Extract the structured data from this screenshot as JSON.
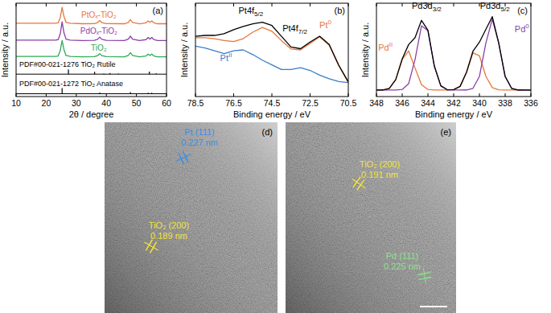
{
  "chart_data": [
    {
      "type": "line",
      "panel_label": "(a)",
      "x_label": "2θ / degree",
      "y_label": "Intensity / a.u.",
      "xlim": [
        10,
        60
      ],
      "xticks": [
        10,
        20,
        30,
        40,
        50,
        60
      ],
      "ylim": [
        0,
        10
      ],
      "tick_labels": "x",
      "x": [
        10,
        15,
        20,
        23,
        24,
        24.7,
        25.3,
        25.9,
        26.6,
        28,
        32,
        36,
        37.1,
        37.8,
        38.5,
        40,
        46,
        47.3,
        48,
        48.7,
        51,
        53.2,
        53.9,
        54.5,
        55.1,
        55.8,
        57,
        60
      ],
      "series": [
        {
          "name": "PtOₓ-TiO₂",
          "color": "#e8763a",
          "values": [
            7.85,
            7.85,
            7.85,
            7.85,
            7.9,
            8.5,
            9.55,
            8.6,
            7.95,
            7.85,
            7.8,
            7.82,
            7.93,
            8.15,
            7.93,
            7.82,
            7.8,
            7.95,
            8.25,
            7.95,
            7.8,
            7.9,
            8.1,
            7.95,
            8.1,
            7.9,
            7.8,
            7.8
          ]
        },
        {
          "name": "PdOₓ-TiO₂",
          "color": "#8b3fa8",
          "values": [
            6.05,
            6.05,
            6.05,
            6.05,
            6.1,
            6.75,
            8.0,
            6.85,
            6.15,
            6.05,
            6.0,
            6.02,
            6.13,
            6.37,
            6.13,
            6.02,
            6.0,
            6.15,
            6.48,
            6.15,
            6.0,
            6.1,
            6.33,
            6.15,
            6.33,
            6.1,
            6.0,
            6.0
          ]
        },
        {
          "name": "TiO₂",
          "color": "#2eaa55",
          "values": [
            4.3,
            4.3,
            4.3,
            4.3,
            4.35,
            4.95,
            6.0,
            5.05,
            4.4,
            4.3,
            4.25,
            4.27,
            4.38,
            4.6,
            4.38,
            4.27,
            4.25,
            4.4,
            4.7,
            4.4,
            4.25,
            4.35,
            4.55,
            4.4,
            4.55,
            4.35,
            4.25,
            4.25
          ]
        },
        {
          "name": "PDF#00-021-1276 TiO₂ Rutile",
          "type": "stick",
          "color": "#000000",
          "baseline": 2.4,
          "x": [
            27.4,
            36.1,
            39.2,
            41.2,
            44.0,
            54.3,
            56.6
          ],
          "values": [
            0.5,
            0.25,
            0.05,
            0.12,
            0.05,
            0.28,
            0.08
          ]
        },
        {
          "name": "PDF#00-021-1272 TiO₂ Anatase",
          "type": "stick",
          "color": "#000000",
          "baseline": 0.3,
          "x": [
            25.3,
            37.0,
            37.8,
            38.6,
            48.0,
            53.9,
            55.1
          ],
          "values": [
            0.6,
            0.05,
            0.13,
            0.05,
            0.18,
            0.12,
            0.12
          ]
        }
      ]
    },
    {
      "type": "line",
      "panel_label": "(b)",
      "x_label": "Binding energy / eV",
      "y_label": "Intensity / a.u.",
      "xlim": [
        78.5,
        70.5
      ],
      "xticks": [
        78.5,
        76.5,
        74.5,
        72.5,
        70.5
      ],
      "ylim": [
        0,
        10
      ],
      "tick_labels": "x",
      "x": [
        78.5,
        78,
        77.5,
        77,
        76.5,
        76,
        75.5,
        75,
        74.5,
        74,
        73.5,
        73,
        72.5,
        72,
        71.5,
        71,
        70.5
      ],
      "series": [
        {
          "color": "#e8763a",
          "values": [
            6.3,
            6.3,
            6.2,
            6.0,
            5.9,
            6.2,
            6.9,
            7.4,
            7.0,
            6.0,
            5.1,
            5.0,
            5.7,
            6.4,
            5.5,
            3.3,
            1.5
          ]
        },
        {
          "color": "#3a7dc9",
          "values": [
            5.4,
            5.2,
            4.9,
            4.6,
            4.9,
            5.0,
            4.5,
            3.9,
            3.4,
            2.9,
            2.9,
            3.1,
            2.8,
            2.3,
            1.9,
            1.6,
            1.5
          ]
        },
        {
          "color": "#000000",
          "values": [
            6.46,
            6.55,
            6.55,
            6.73,
            7.17,
            7.52,
            7.79,
            7.96,
            7.61,
            6.46,
            5.31,
            5.13,
            5.84,
            6.46,
            5.58,
            3.36,
            1.59
          ]
        }
      ],
      "annotations": [
        {
          "text": "Pt4f",
          "subscript": "5/2",
          "x": 75.6,
          "y": 8.9,
          "color": "#000000"
        },
        {
          "text": "Pt4f",
          "subscript": "7/2",
          "x": 73.3,
          "y": 7.0,
          "color": "#000000"
        },
        {
          "text": "Pt",
          "superscript": "II",
          "x": 76.9,
          "y": 3.8,
          "color": "#3a7dc9"
        },
        {
          "text": "Pt",
          "superscript": "0",
          "x": 71.7,
          "y": 7.3,
          "color": "#e8763a"
        }
      ]
    },
    {
      "type": "line",
      "panel_label": "(c)",
      "x_label": "Binding energy / eV",
      "y_label": "Intensity / a.u.",
      "xlim": [
        348,
        336
      ],
      "xticks": [
        348,
        346,
        344,
        342,
        340,
        338,
        336
      ],
      "ylim": [
        0,
        10
      ],
      "tick_labels": "x",
      "x": [
        348,
        347.5,
        347,
        346.5,
        346,
        345.5,
        345,
        344.5,
        344,
        343.5,
        343,
        342.5,
        342,
        341.5,
        341,
        340.5,
        340,
        339.5,
        339,
        338.5,
        338,
        337.5,
        337,
        336.5,
        336
      ],
      "series": [
        {
          "color": "#e8763a",
          "values": [
            0.7,
            0.71,
            0.87,
            1.82,
            3.97,
            4.89,
            3.05,
            1.28,
            0.76,
            0.7,
            0.7,
            0.7,
            0.74,
            1.09,
            2.6,
            4.69,
            4.37,
            2.18,
            0.96,
            0.72,
            0.7,
            0.7,
            0.7,
            0.7,
            0.7
          ]
        },
        {
          "color": "#8b3fa8",
          "values": [
            0.7,
            0.7,
            0.7,
            0.7,
            0.76,
            1.38,
            3.97,
            7.58,
            7.04,
            3.25,
            1.15,
            0.73,
            0.7,
            0.7,
            0.71,
            0.88,
            2.15,
            5.72,
            8.3,
            5.72,
            2.15,
            0.88,
            0.71,
            0.7,
            0.7
          ]
        },
        {
          "color": "#000000",
          "values": [
            0.7,
            0.71,
            0.87,
            1.82,
            4.03,
            5.57,
            6.32,
            8.16,
            7.1,
            3.25,
            1.15,
            0.73,
            0.74,
            1.09,
            2.61,
            4.87,
            5.82,
            7.2,
            8.56,
            5.74,
            2.15,
            0.88,
            0.71,
            0.7,
            0.7
          ]
        }
      ],
      "annotations": [
        {
          "text": "Pd3d",
          "subscript": "3/2",
          "x": 344.1,
          "y": 9.4,
          "color": "#000000"
        },
        {
          "text": "Pd3d",
          "subscript": "5/2",
          "x": 338.8,
          "y": 9.4,
          "color": "#000000"
        },
        {
          "text": "Pd",
          "superscript": "II",
          "x": 347.3,
          "y": 4.9,
          "color": "#e8763a"
        },
        {
          "text": "Pd",
          "superscript": "0",
          "x": 336.7,
          "y": 6.9,
          "color": "#8b3fa8"
        }
      ]
    }
  ],
  "images": [
    {
      "panel_label": "(d)",
      "annotations": [
        {
          "lines": [
            "Pt (111)",
            "0.227 nm"
          ],
          "color": "#3a8ee6"
        },
        {
          "lines": [
            "TiO₂ (200)",
            "0.189 nm"
          ],
          "color": "#f2e33a"
        }
      ]
    },
    {
      "panel_label": "(e)",
      "annotations": [
        {
          "lines": [
            "TiO₂ (200)",
            "0.191 nm"
          ],
          "color": "#f2e33a"
        },
        {
          "lines": [
            "Pd (111)",
            "0.225 nm"
          ],
          "color": "#8fe08f"
        }
      ]
    }
  ]
}
